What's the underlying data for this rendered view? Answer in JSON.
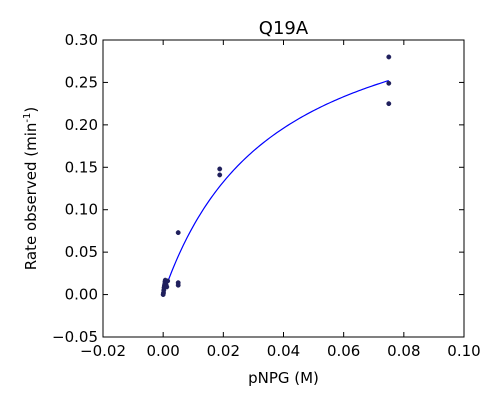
{
  "chart_data": {
    "type": "scatter",
    "title": "Q19A",
    "xlabel": "pNPG (M)",
    "ylabel_main": "Rate observed (min",
    "ylabel_sup": "-1",
    "ylabel_end": ")",
    "xlim": [
      -0.02,
      0.1
    ],
    "ylim": [
      -0.05,
      0.3
    ],
    "xticks": [
      -0.02,
      0.0,
      0.02,
      0.04,
      0.06,
      0.08,
      0.1
    ],
    "xtick_labels": [
      "−0.02",
      "0.00",
      "0.02",
      "0.04",
      "0.06",
      "0.08",
      "0.10"
    ],
    "yticks": [
      -0.05,
      0.0,
      0.05,
      0.1,
      0.15,
      0.2,
      0.25,
      0.3
    ],
    "ytick_labels": [
      "−0.05",
      "0.00",
      "0.05",
      "0.10",
      "0.15",
      "0.20",
      "0.25",
      "0.30"
    ],
    "grid": false,
    "points": [
      {
        "x": 0.0,
        "y": 0.0
      },
      {
        "x": 0.0001,
        "y": 0.002
      },
      {
        "x": 0.0002,
        "y": 0.005
      },
      {
        "x": 0.0003,
        "y": 0.008
      },
      {
        "x": 0.0004,
        "y": 0.01
      },
      {
        "x": 0.0005,
        "y": 0.012
      },
      {
        "x": 0.0006,
        "y": 0.015
      },
      {
        "x": 0.0007,
        "y": 0.017
      },
      {
        "x": 0.0008,
        "y": 0.014
      },
      {
        "x": 0.001,
        "y": 0.011
      },
      {
        "x": 0.0012,
        "y": 0.009
      },
      {
        "x": 0.0015,
        "y": 0.016
      },
      {
        "x": 0.005,
        "y": 0.073
      },
      {
        "x": 0.005,
        "y": 0.014
      },
      {
        "x": 0.005,
        "y": 0.011
      },
      {
        "x": 0.0188,
        "y": 0.148
      },
      {
        "x": 0.0188,
        "y": 0.141
      },
      {
        "x": 0.075,
        "y": 0.28
      },
      {
        "x": 0.075,
        "y": 0.249
      },
      {
        "x": 0.075,
        "y": 0.225
      }
    ],
    "fit": {
      "model": "michaelis-menten",
      "vmax": 0.375,
      "km": 0.0365,
      "x_range": [
        0.0005,
        0.075
      ]
    },
    "colors": {
      "points": "#1f1f5c",
      "fit_line": "#0000ff",
      "axes": "#000000"
    }
  }
}
